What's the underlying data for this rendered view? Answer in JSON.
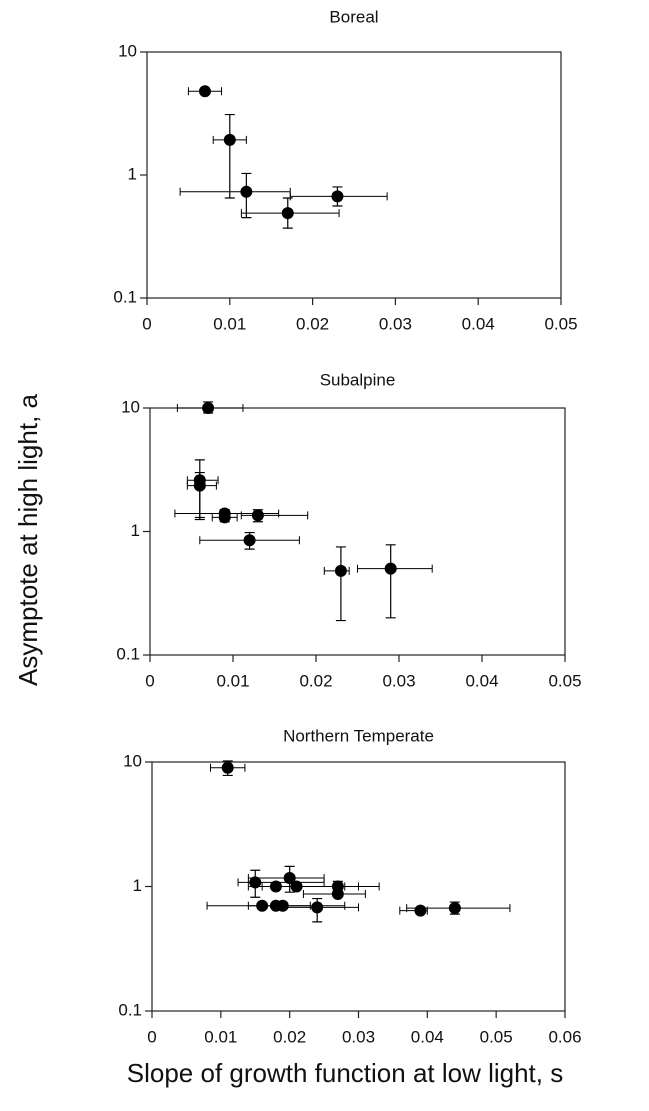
{
  "ylabel": "Asymptote at high light, a",
  "xlabel": "Slope of growth function at low light, s",
  "chart_data": [
    {
      "type": "scatter",
      "title": "Boreal",
      "yscale": "log",
      "xlim": [
        0,
        0.05
      ],
      "xticks": [
        0,
        0.01,
        0.02,
        0.03,
        0.04,
        0.05
      ],
      "ylim": [
        0.1,
        10
      ],
      "yticks": [
        0.1,
        1,
        10
      ],
      "series": [
        {
          "name": "Boreal",
          "color": "#000000",
          "x": [
            0.007,
            0.01,
            0.012,
            0.017,
            0.023
          ],
          "values": [
            4.8,
            1.93,
            0.73,
            0.49,
            0.67
          ],
          "x_lower": [
            0.005,
            0.008,
            0.004,
            0.0114,
            0.0173
          ],
          "x_upper": [
            0.009,
            0.012,
            0.0173,
            0.0232,
            0.029
          ],
          "y_lower": [
            null,
            0.65,
            0.45,
            0.37,
            0.56
          ],
          "y_upper": [
            null,
            3.1,
            1.03,
            0.65,
            0.8
          ]
        }
      ]
    },
    {
      "type": "scatter",
      "title": "Subalpine",
      "yscale": "log",
      "xlim": [
        0,
        0.05
      ],
      "xticks": [
        0,
        0.01,
        0.02,
        0.03,
        0.04,
        0.05
      ],
      "ylim": [
        0.1,
        10
      ],
      "yticks": [
        0.1,
        1,
        10
      ],
      "series": [
        {
          "name": "Subalpine",
          "color": "#000000",
          "x": [
            0.007,
            0.006,
            0.006,
            0.009,
            0.009,
            0.013,
            0.012,
            0.023,
            0.029
          ],
          "values": [
            10,
            2.6,
            2.35,
            1.4,
            1.3,
            1.35,
            0.85,
            0.48,
            0.5
          ],
          "x_lower": [
            0.0033,
            0.0045,
            0.0045,
            0.003,
            0.0075,
            0.011,
            0.006,
            0.021,
            0.025
          ],
          "x_upper": [
            0.0112,
            0.0082,
            0.008,
            0.0155,
            0.0105,
            0.019,
            0.018,
            0.024,
            0.034
          ],
          "y_lower": [
            9.1,
            1.3,
            1.25,
            1.25,
            1.2,
            1.2,
            0.72,
            0.19,
            0.2
          ],
          "y_upper": [
            11.2,
            3.8,
            3.0,
            1.5,
            1.45,
            1.5,
            0.98,
            0.75,
            0.78
          ]
        }
      ]
    },
    {
      "type": "scatter",
      "title": "Northern Temperate",
      "yscale": "log",
      "xlim": [
        0,
        0.06
      ],
      "xticks": [
        0,
        0.01,
        0.02,
        0.03,
        0.04,
        0.05,
        0.06
      ],
      "ylim": [
        0.1,
        10
      ],
      "yticks": [
        0.1,
        1,
        10
      ],
      "series": [
        {
          "name": "Northern Temperate",
          "color": "#000000",
          "x": [
            0.011,
            0.015,
            0.016,
            0.018,
            0.018,
            0.019,
            0.02,
            0.021,
            0.024,
            0.027,
            0.027,
            0.039,
            0.044
          ],
          "values": [
            9,
            1.08,
            0.7,
            1.0,
            0.7,
            0.7,
            1.17,
            1.0,
            0.68,
            1.0,
            0.87,
            0.64,
            0.67
          ],
          "x_lower": [
            0.0085,
            0.0125,
            0.008,
            0.014,
            null,
            0.014,
            0.014,
            0.016,
            0.018,
            0.021,
            0.022,
            0.036,
            0.037
          ],
          "x_upper": [
            0.0135,
            0.025,
            0.023,
            0.028,
            null,
            0.028,
            0.025,
            0.03,
            0.03,
            0.033,
            0.031,
            0.04,
            0.052
          ],
          "y_lower": [
            7.8,
            0.82,
            null,
            null,
            null,
            null,
            0.9,
            null,
            0.52,
            0.85,
            null,
            null,
            0.6
          ],
          "y_upper": [
            10.2,
            1.35,
            null,
            null,
            null,
            null,
            1.45,
            null,
            0.8,
            1.1,
            null,
            null,
            0.75
          ]
        }
      ]
    }
  ]
}
